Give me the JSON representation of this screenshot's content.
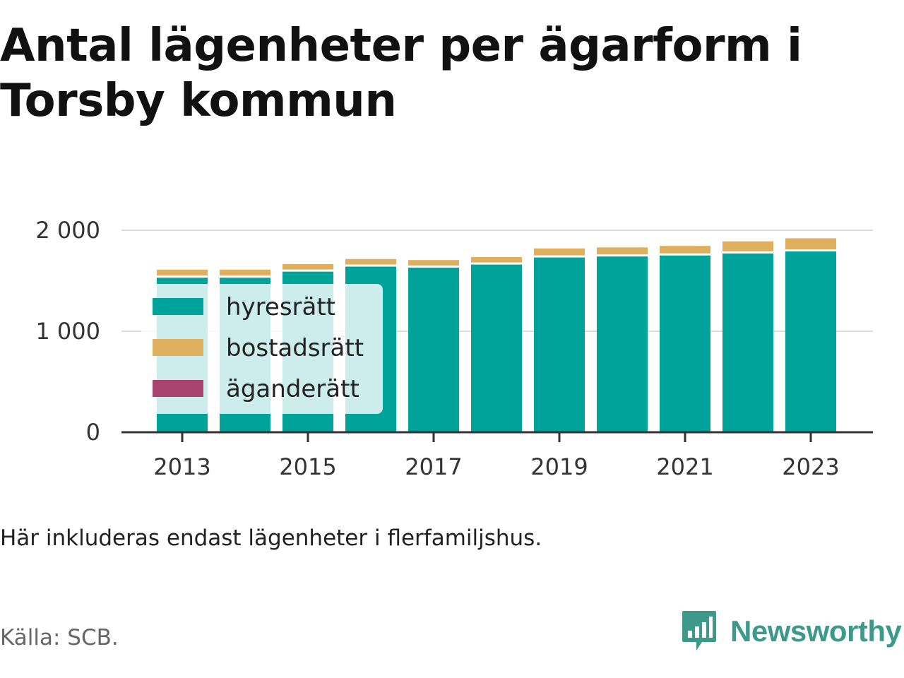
{
  "title": "Antal lägenheter per ägarform i Torsby kommun",
  "note": "Här inkluderas endast lägenheter i flerfamiljshus.",
  "source": "Källa: SCB.",
  "brand": "Newsworthy",
  "colors": {
    "hyresratt": "#00a39a",
    "bostadsratt": "#deb05e",
    "aganderatt": "#a8426e",
    "grid": "#dddddd",
    "axis": "#333333",
    "brand": "#3d9a8b"
  },
  "chart_data": {
    "type": "bar",
    "stacked": true,
    "x": [
      2013,
      2014,
      2015,
      2016,
      2017,
      2018,
      2019,
      2020,
      2021,
      2022,
      2023
    ],
    "x_tick_labels": [
      "2013",
      "2015",
      "2017",
      "2019",
      "2021",
      "2023"
    ],
    "y_tick_labels": [
      "0",
      "1 000",
      "2 000"
    ],
    "y_ticks": [
      0,
      1000,
      2000
    ],
    "ylim": [
      0,
      2000
    ],
    "grid": true,
    "legend_position": "top-left",
    "series": [
      {
        "name": "hyresrätt",
        "color": "#00a39a",
        "values": [
          1530,
          1530,
          1590,
          1640,
          1630,
          1660,
          1730,
          1740,
          1750,
          1770,
          1790
        ]
      },
      {
        "name": "bostadsrätt",
        "color": "#deb05e",
        "values": [
          80,
          80,
          75,
          75,
          75,
          75,
          90,
          90,
          95,
          120,
          130
        ]
      },
      {
        "name": "äganderätt",
        "color": "#a8426e",
        "values": [
          0,
          0,
          0,
          0,
          0,
          0,
          0,
          0,
          0,
          0,
          0
        ]
      }
    ]
  }
}
